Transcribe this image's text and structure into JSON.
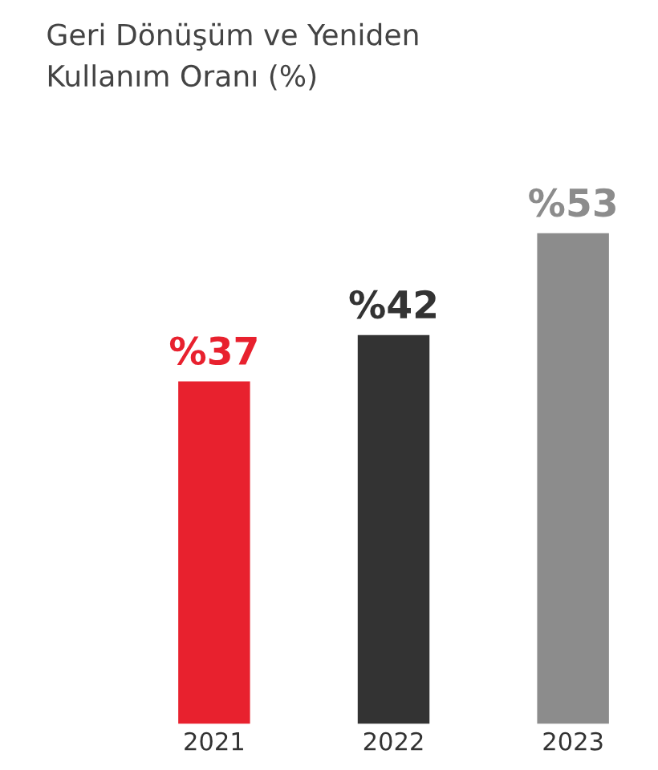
{
  "chart_data": {
    "type": "bar",
    "title": "Geri Dönüşüm ve Yeniden\nKullanım Oranı (%)",
    "categories": [
      "2021",
      "2022",
      "2023"
    ],
    "values": [
      37,
      42,
      53
    ],
    "colors": [
      "#e8212e",
      "#333333",
      "#8c8c8c"
    ],
    "value_labels": [
      "%37",
      "%42",
      "%53"
    ]
  }
}
